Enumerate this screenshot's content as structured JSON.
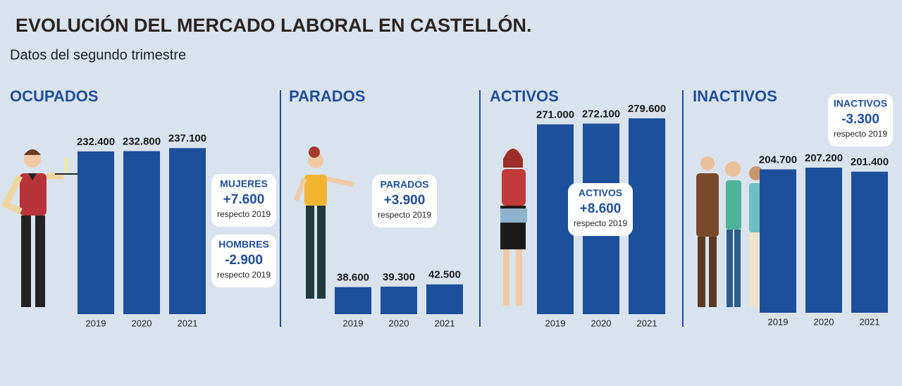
{
  "title": "EVOLUCIÓN DEL MERCADO LABORAL EN CASTELLÓN.",
  "subtitle": "Datos del segundo trimestre",
  "chart_data": [
    {
      "type": "bar",
      "title": "OCUPADOS",
      "categories": [
        "2019",
        "2020",
        "2021"
      ],
      "values": [
        232400,
        232800,
        237100
      ],
      "value_labels": [
        "232.400",
        "232.800",
        "237.100"
      ],
      "color": "#1c4f9c",
      "annotations": [
        {
          "label": "MUJERES",
          "text": "+7.600",
          "note": "respecto 2019"
        },
        {
          "label": "HOMBRES",
          "text": "-2.900",
          "note": "respecto 2019"
        }
      ]
    },
    {
      "type": "bar",
      "title": "PARADOS",
      "categories": [
        "2019",
        "2020",
        "2021"
      ],
      "values": [
        38600,
        39300,
        42500
      ],
      "value_labels": [
        "38.600",
        "39.300",
        "42.500"
      ],
      "color": "#1c4f9c",
      "annotations": [
        {
          "label": "PARADOS",
          "text": "+3.900",
          "note": "respecto 2019"
        }
      ]
    },
    {
      "type": "bar",
      "title": "ACTIVOS",
      "categories": [
        "2019",
        "2020",
        "2021"
      ],
      "values": [
        271000,
        272100,
        279600
      ],
      "value_labels": [
        "271.000",
        "272.100",
        "279.600"
      ],
      "color": "#1c4f9c",
      "annotations": [
        {
          "label": "ACTIVOS",
          "text": "+8.600",
          "note": "respecto 2019"
        }
      ]
    },
    {
      "type": "bar",
      "title": "INACTIVOS",
      "categories": [
        "2019",
        "2020",
        "2021"
      ],
      "values": [
        204700,
        207200,
        201400
      ],
      "value_labels": [
        "204.700",
        "207.200",
        "201.400"
      ],
      "color": "#1c4f9c",
      "annotations": [
        {
          "label": "INACTIVOS",
          "text": "-3.300",
          "note": "respecto 2019"
        }
      ]
    }
  ]
}
